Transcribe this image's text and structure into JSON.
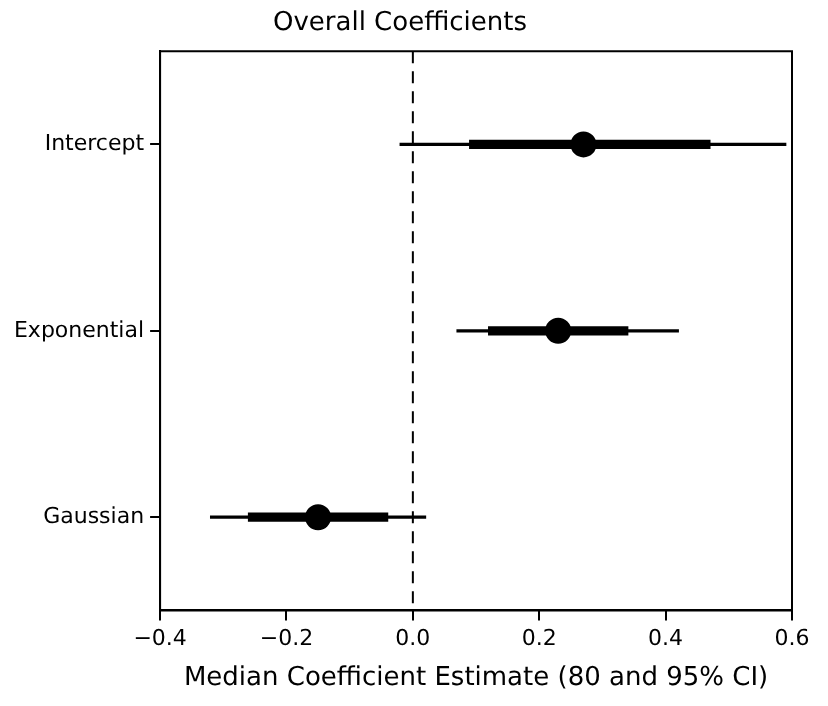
{
  "chart_data": {
    "type": "bar",
    "orientation": "horizontal",
    "title": "Overall Coefficients",
    "xlabel": "Median Coefficient Estimate (80 and 95% CI)",
    "categories": [
      "Intercept",
      "Exponential",
      "Gaussian"
    ],
    "series": [
      {
        "color": "#000000",
        "base": [
          -0.02,
          0.07,
          -0.32
        ],
        "values": [
          0.61,
          0.35,
          0.34
        ]
      },
      {
        "color": "#000000",
        "base": [
          0.09,
          0.12,
          -0.26
        ],
        "values": [
          0.38,
          0.22,
          0.22
        ]
      },
      {
        "type": "scatter",
        "color": "#000000",
        "marker": "circle",
        "values": [
          0.27,
          0.23,
          -0.15
        ]
      }
    ],
    "xlim": [
      -0.4,
      0.6
    ],
    "xticks": [
      {
        "value": -0.4,
        "label": "−0.4"
      },
      {
        "value": -0.2,
        "label": "−0.2"
      },
      {
        "value": 0,
        "label": "0.0"
      },
      0.2,
      0.4,
      0.6
    ],
    "ref_lines": [
      {
        "axis": "x",
        "value": 0,
        "line_style": "dashed",
        "color": "#000000"
      }
    ],
    "grid": false,
    "legend": false
  }
}
